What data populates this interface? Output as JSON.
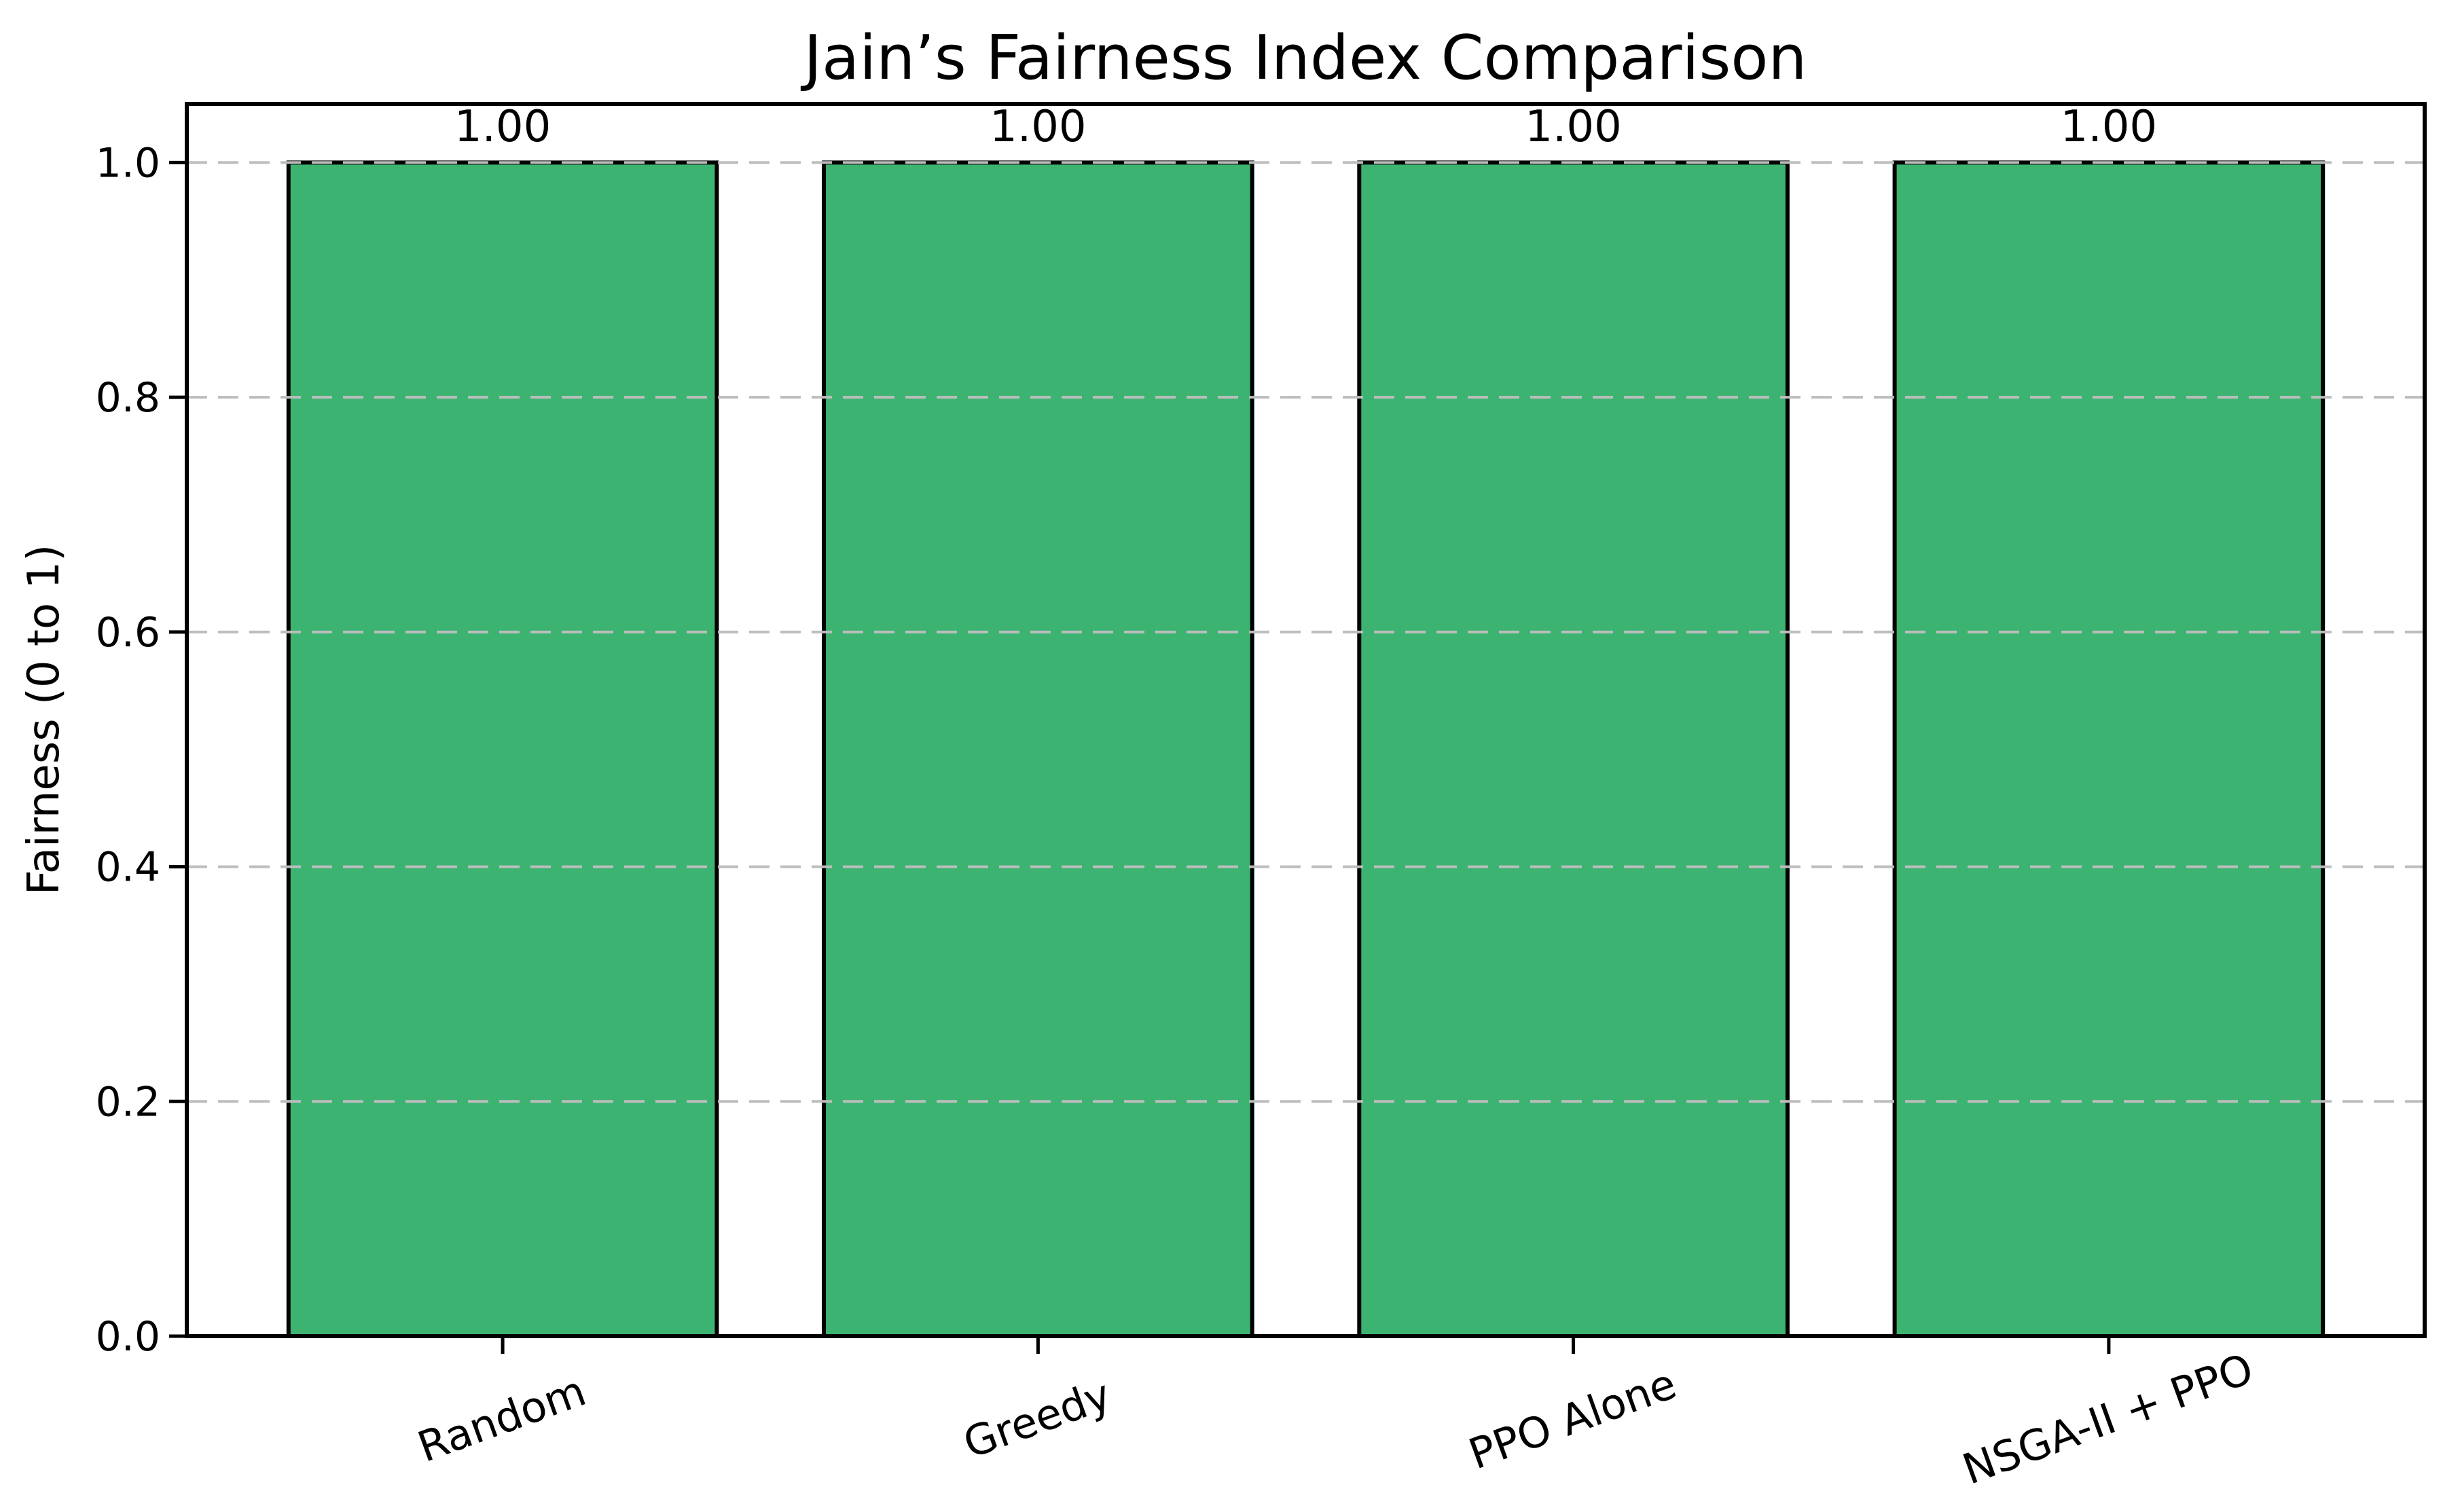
{
  "chart_data": {
    "type": "bar",
    "title": "Jain’s Fairness Index Comparison",
    "ylabel": "Fairness (0 to 1)",
    "xlabel": "",
    "categories": [
      "Random",
      "Greedy",
      "PPO Alone",
      "NSGA-II + PPO"
    ],
    "values": [
      1.0,
      1.0,
      1.0,
      1.0
    ],
    "bar_value_labels": [
      "1.00",
      "1.00",
      "1.00",
      "1.00"
    ],
    "ylim": [
      0,
      1.05
    ],
    "yticks": [
      0.0,
      0.2,
      0.4,
      0.6,
      0.8,
      1.0
    ],
    "ytick_labels": [
      "0.0",
      "0.2",
      "0.4",
      "0.6",
      "0.8",
      "1.0"
    ],
    "xtick_rotation_deg": 20,
    "grid": "horizontal-dashed",
    "grid_over_bars": true,
    "legend": "none",
    "colors": {
      "bar_fill": "#3cb371",
      "bar_edge": "#000000",
      "grid": "#bdbdbd",
      "axis": "#000000",
      "text": "#000000",
      "background": "#ffffff"
    }
  }
}
